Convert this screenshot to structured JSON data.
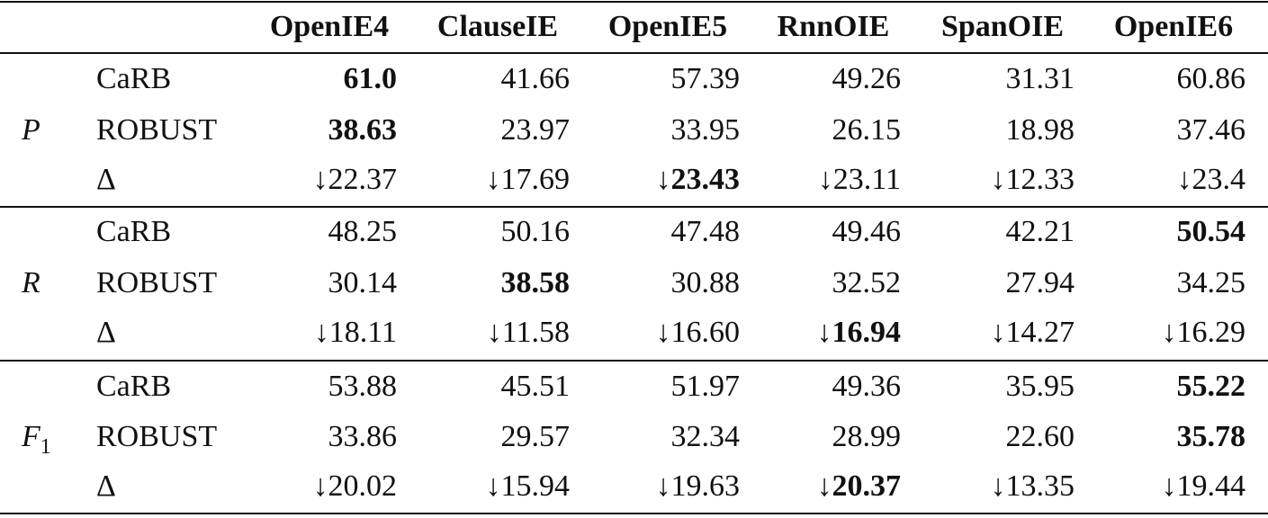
{
  "table": {
    "columns": [
      "OpenIE4",
      "ClauseIE",
      "OpenIE5",
      "RnnOIE",
      "SpanOIE",
      "OpenIE6"
    ],
    "groups": [
      {
        "label": "P",
        "rows": [
          {
            "label": "CaRB",
            "values": [
              "61.0",
              "41.66",
              "57.39",
              "49.26",
              "31.31",
              "60.86"
            ]
          },
          {
            "label": "ROBUST",
            "values": [
              "38.63",
              "23.97",
              "33.95",
              "26.15",
              "18.98",
              "37.46"
            ]
          },
          {
            "label": "Δ",
            "values": [
              "↓22.37",
              "↓17.69",
              "↓23.43",
              "↓23.11",
              "↓12.33",
              "↓23.4"
            ]
          }
        ]
      },
      {
        "label": "R",
        "rows": [
          {
            "label": "CaRB",
            "values": [
              "48.25",
              "50.16",
              "47.48",
              "49.46",
              "42.21",
              "50.54"
            ]
          },
          {
            "label": "ROBUST",
            "values": [
              "30.14",
              "38.58",
              "30.88",
              "32.52",
              "27.94",
              "34.25"
            ]
          },
          {
            "label": "Δ",
            "values": [
              "↓18.11",
              "↓11.58",
              "↓16.60",
              "↓16.94",
              "↓14.27",
              "↓16.29"
            ]
          }
        ]
      },
      {
        "label": "F",
        "subscript": "1",
        "rows": [
          {
            "label": "CaRB",
            "values": [
              "53.88",
              "45.51",
              "51.97",
              "49.36",
              "35.95",
              "55.22"
            ]
          },
          {
            "label": "ROBUST",
            "values": [
              "33.86",
              "29.57",
              "32.34",
              "28.99",
              "22.60",
              "35.78"
            ]
          },
          {
            "label": "Δ",
            "values": [
              "↓20.02",
              "↓15.94",
              "↓19.63",
              "↓20.37",
              "↓13.35",
              "↓19.44"
            ]
          }
        ]
      }
    ]
  }
}
